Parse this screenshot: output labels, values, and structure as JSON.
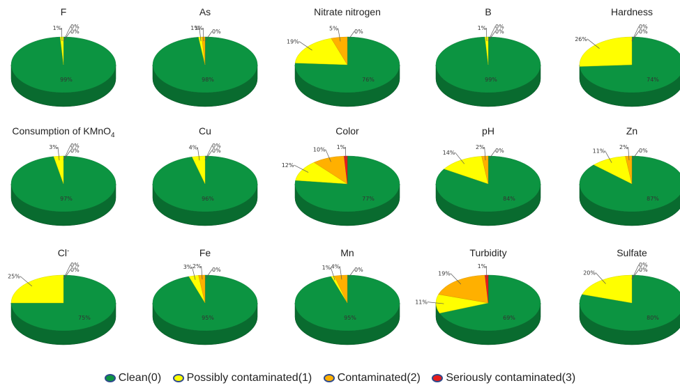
{
  "chart_data": {
    "type": "pie",
    "categories": [
      "Clean(0)",
      "Possibly contaminated(1)",
      "Contaminated(2)",
      "Seriously contaminated(3)"
    ],
    "colors": {
      "Clean(0)": "#0c9441",
      "Possibly contaminated(1)": "#ffff00",
      "Contaminated(2)": "#ffb000",
      "Seriously contaminated(3)": "#e81c1c"
    },
    "legend_position": "bottom",
    "charts": [
      {
        "title": "F",
        "values": [
          99,
          1,
          0,
          0
        ],
        "labels": [
          "99%",
          "1%",
          "0%",
          "0%"
        ]
      },
      {
        "title": "As",
        "values": [
          98,
          1,
          1,
          0
        ],
        "labels": [
          "98%",
          "1%",
          "1%",
          "0%"
        ]
      },
      {
        "title": "Nitrate nitrogen",
        "values": [
          76,
          19,
          5,
          0
        ],
        "labels": [
          "76%",
          "19%",
          "5%",
          "0%"
        ]
      },
      {
        "title": "B",
        "values": [
          99,
          1,
          0,
          0
        ],
        "labels": [
          "99%",
          "1%",
          "0%",
          "0%"
        ]
      },
      {
        "title": "Hardness",
        "values": [
          74,
          26,
          0,
          0
        ],
        "labels": [
          "74%",
          "26%",
          "0%",
          "0%"
        ]
      },
      {
        "title": "Consumption of KMnO",
        "title_sub": "4",
        "values": [
          97,
          3,
          0,
          0
        ],
        "labels": [
          "97%",
          "3%",
          "0%",
          "0%"
        ]
      },
      {
        "title": "Cu",
        "values": [
          96,
          4,
          0,
          0
        ],
        "labels": [
          "96%",
          "4%",
          "0%",
          "0%"
        ]
      },
      {
        "title": "Color",
        "values": [
          77,
          12,
          10,
          1
        ],
        "labels": [
          "77%",
          "12%",
          "10%",
          "1%"
        ]
      },
      {
        "title": "pH",
        "values": [
          84,
          14,
          2,
          0
        ],
        "labels": [
          "84%",
          "14%",
          "2%",
          "0%"
        ]
      },
      {
        "title": "Zn",
        "values": [
          87,
          11,
          2,
          0
        ],
        "labels": [
          "87%",
          "11%",
          "2%",
          "0%"
        ]
      },
      {
        "title": "Cl",
        "title_sup": "-",
        "values": [
          75,
          25,
          0,
          0
        ],
        "labels": [
          "75%",
          "25%",
          "0%",
          "0%"
        ]
      },
      {
        "title": "Fe",
        "values": [
          95,
          3,
          2,
          0
        ],
        "labels": [
          "95%",
          "3%",
          "2%",
          "0%"
        ]
      },
      {
        "title": "Mn",
        "values": [
          95,
          1,
          4,
          0
        ],
        "labels": [
          "95%",
          "1%",
          "4%",
          "0%"
        ]
      },
      {
        "title": "Turbidity",
        "values": [
          69,
          11,
          19,
          1
        ],
        "labels": [
          "69%",
          "11%",
          "19%",
          "1%"
        ]
      },
      {
        "title": "Sulfate",
        "values": [
          80,
          20,
          0,
          0
        ],
        "labels": [
          "80%",
          "20%",
          "0%",
          "0%"
        ]
      }
    ]
  },
  "legend": [
    {
      "label": "Clean(0)",
      "color": "#0c9441"
    },
    {
      "label": "Possibly contaminated(1)",
      "color": "#ffff00"
    },
    {
      "label": "Contaminated(2)",
      "color": "#ffb000"
    },
    {
      "label": "Seriously contaminated(3)",
      "color": "#e81c1c"
    }
  ]
}
